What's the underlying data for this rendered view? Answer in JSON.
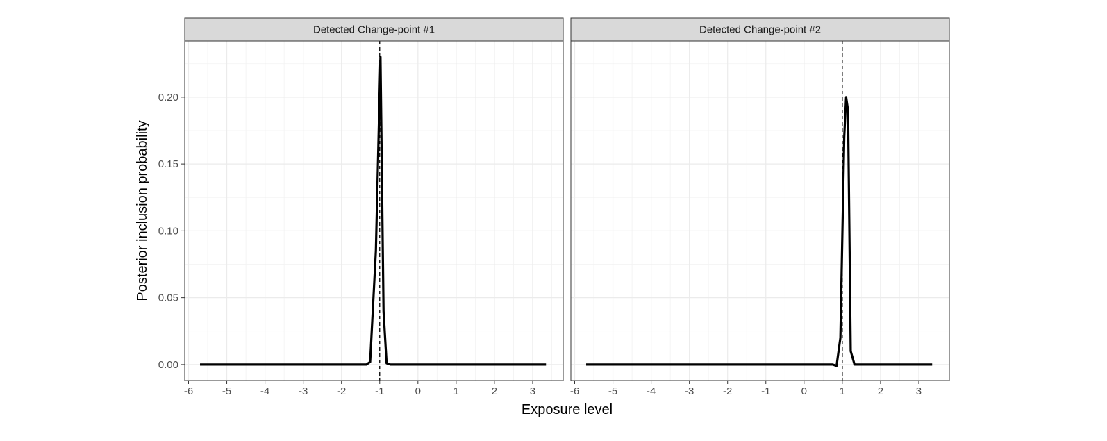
{
  "chart_data": {
    "type": "line",
    "xlabel": "Exposure level",
    "ylabel": "Posterior inclusion probability",
    "xlim": [
      -6.1,
      3.8
    ],
    "ylim": [
      -0.012,
      0.242
    ],
    "x_ticks": [
      -6,
      -5,
      -4,
      -3,
      -2,
      -1,
      0,
      1,
      2,
      3
    ],
    "x_tick_labels": [
      "-6",
      "-5",
      "-4",
      "-3",
      "-2",
      "-1",
      "0",
      "1",
      "2",
      "3"
    ],
    "y_ticks": [
      0.0,
      0.05,
      0.1,
      0.15,
      0.2
    ],
    "y_tick_labels": [
      "0.00",
      "0.05",
      "0.10",
      "0.15",
      "0.20"
    ],
    "grid": true,
    "panels": [
      {
        "title": "Detected Change-point #1",
        "reference_line_x": -1.0,
        "series": [
          {
            "x": [
              -5.7,
              -1.5,
              -1.35,
              -1.25,
              -1.1,
              -0.98,
              -0.9,
              -0.82,
              -0.72,
              -0.5,
              0,
              1,
              2,
              3.35
            ],
            "y": [
              0.0,
              0.0,
              0.0,
              0.002,
              0.085,
              0.23,
              0.04,
              0.001,
              0.0,
              0.0,
              0.0,
              0.0,
              0.0,
              0.0
            ]
          }
        ]
      },
      {
        "title": "Detected Change-point #2",
        "reference_line_x": 1.0,
        "series": [
          {
            "x": [
              -5.7,
              -3,
              0,
              0.55,
              0.75,
              0.85,
              0.95,
              1.05,
              1.1,
              1.15,
              1.22,
              1.32,
              1.5,
              2,
              3.35
            ],
            "y": [
              0.0,
              0.0,
              0.0,
              0.0,
              0.0,
              -0.001,
              0.02,
              0.17,
              0.2,
              0.19,
              0.01,
              0.0,
              0.0,
              0.0,
              0.0
            ]
          }
        ]
      }
    ]
  }
}
